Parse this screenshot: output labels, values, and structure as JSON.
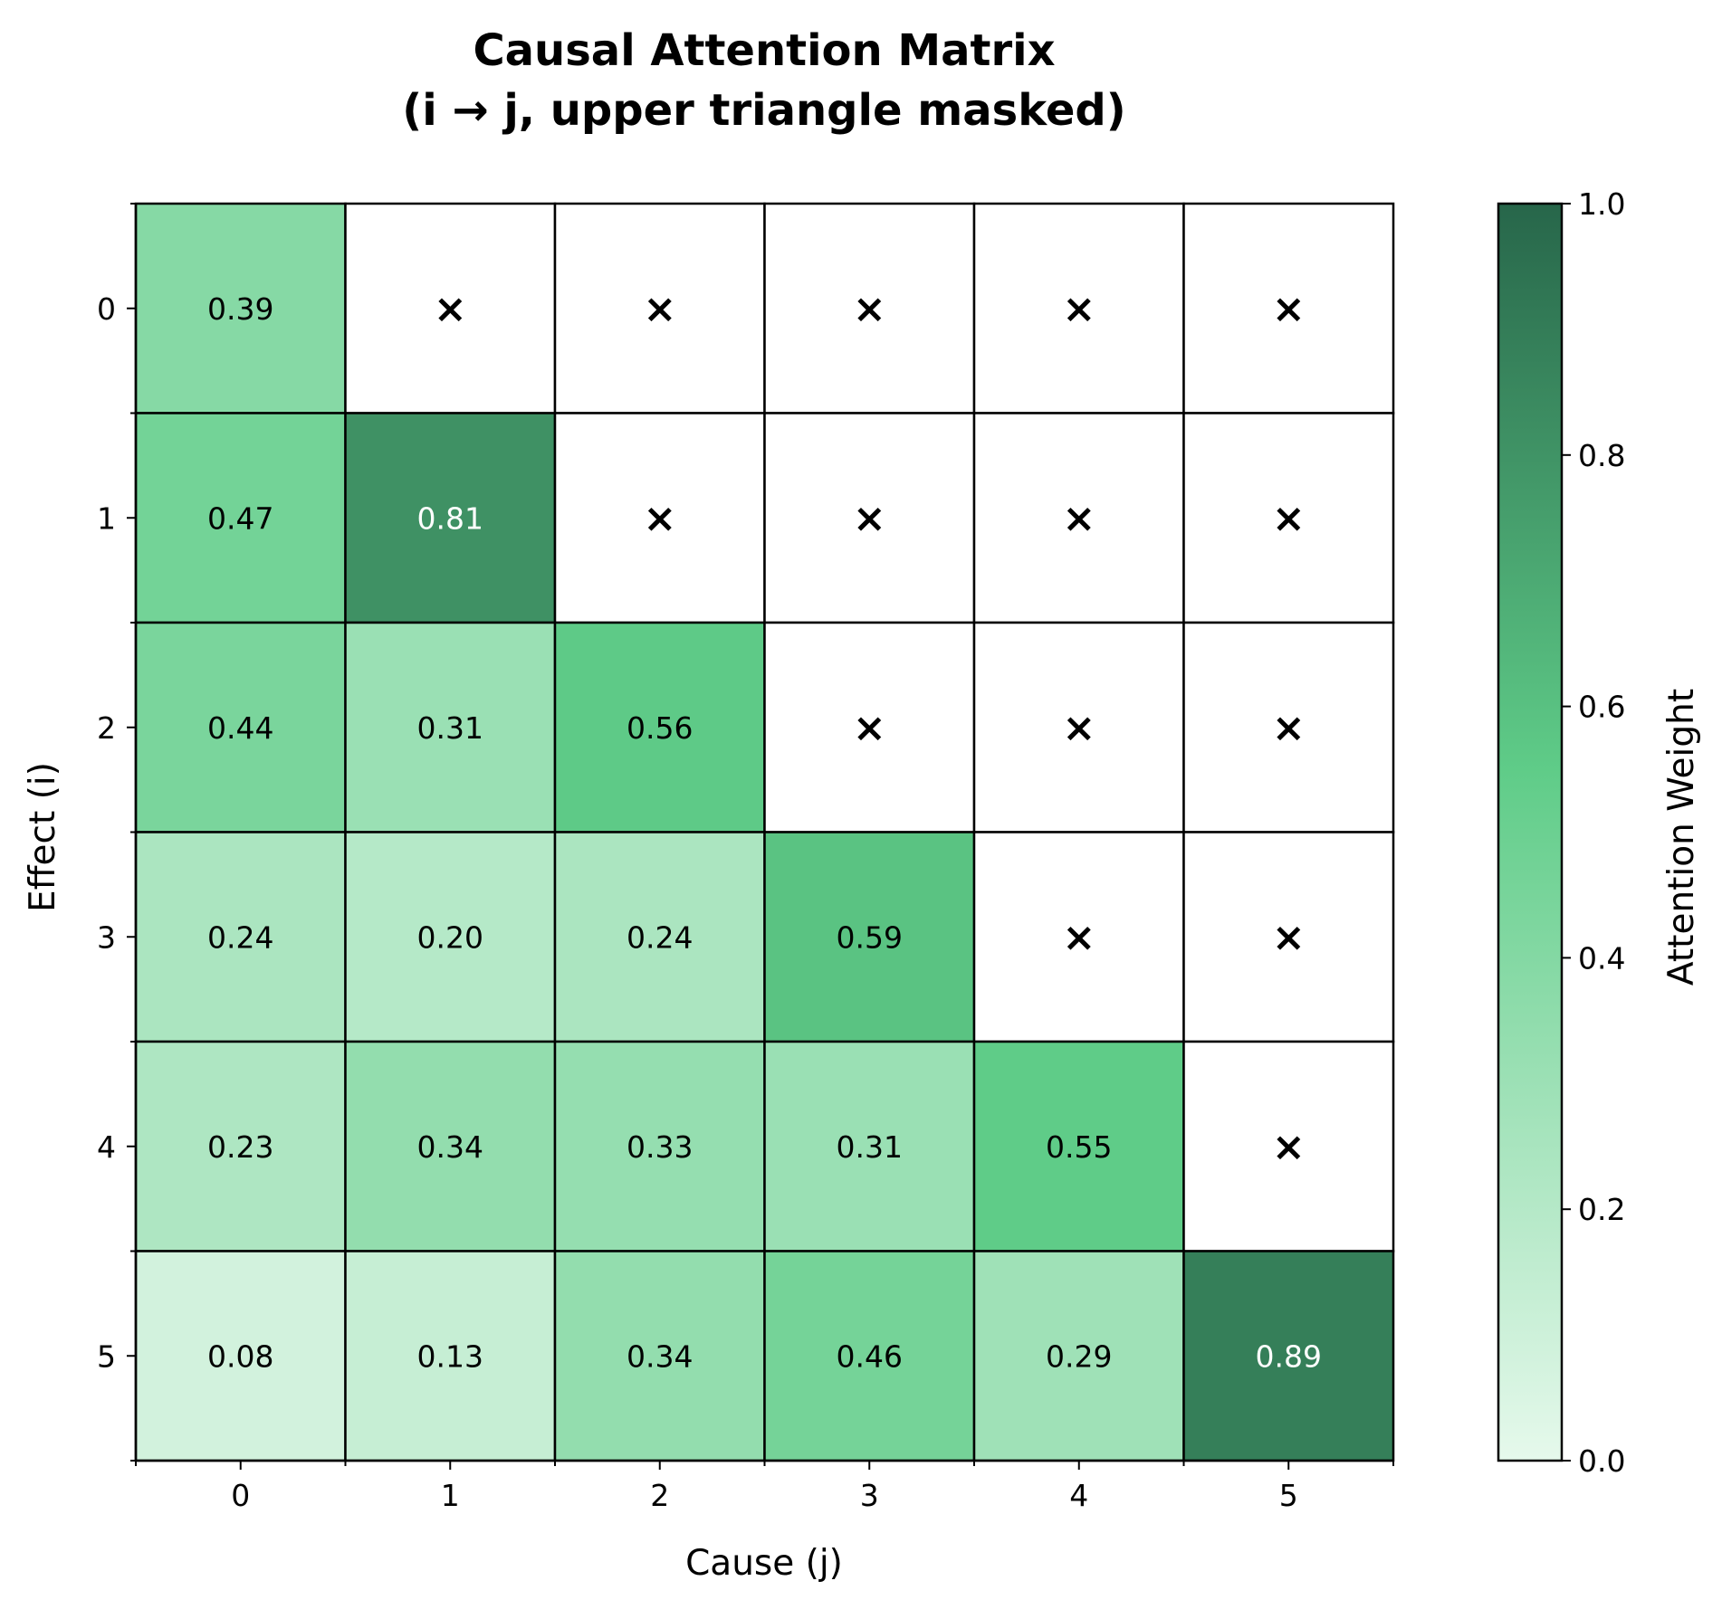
{
  "chart_data": {
    "type": "heatmap",
    "title": "Causal Attention Matrix\n(i → j, upper triangle masked)",
    "xlabel": "Cause (j)",
    "ylabel": "Effect (i)",
    "x_ticks": [
      "0",
      "1",
      "2",
      "3",
      "4",
      "5"
    ],
    "y_ticks": [
      "0",
      "1",
      "2",
      "3",
      "4",
      "5"
    ],
    "values": [
      [
        0.39,
        null,
        null,
        null,
        null,
        null
      ],
      [
        0.47,
        0.81,
        null,
        null,
        null,
        null
      ],
      [
        0.44,
        0.31,
        0.56,
        null,
        null,
        null
      ],
      [
        0.24,
        0.2,
        0.24,
        0.59,
        null,
        null
      ],
      [
        0.23,
        0.34,
        0.33,
        0.31,
        0.55,
        null
      ],
      [
        0.08,
        0.13,
        0.34,
        0.46,
        0.29,
        0.89
      ]
    ],
    "mask_symbol": "×",
    "colorbar": {
      "label": "Attention Weight",
      "range": [
        0,
        1
      ],
      "ticks": [
        "0.0",
        "0.2",
        "0.4",
        "0.6",
        "0.8",
        "1.0"
      ],
      "color_low": "#e6f9ec",
      "color_mid": "#5fcc88",
      "color_high": "#27664a"
    },
    "light_text_color": "#ffffff",
    "dark_text_color": "#000000",
    "grid_color": "#000000"
  }
}
